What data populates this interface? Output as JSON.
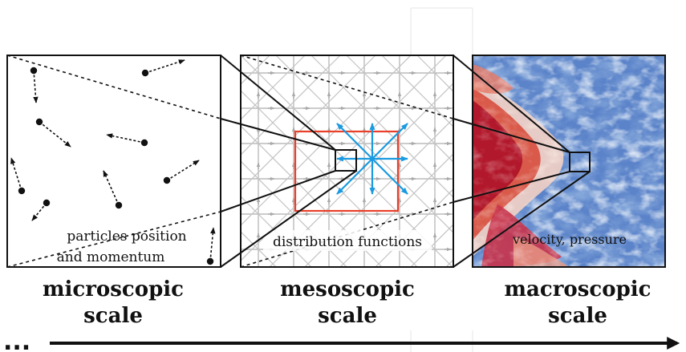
{
  "panels": {
    "microscopic": {
      "caption_line1": "particles position",
      "caption_line2": "and momentum",
      "title_line1": "microscopic",
      "title_line2": "scale"
    },
    "mesoscopic": {
      "caption": "distribution functions",
      "title_line1": "mesoscopic",
      "title_line2": "scale"
    },
    "macroscopic": {
      "caption": "velocity, pressure",
      "title_line1": "macroscopic",
      "title_line2": "scale"
    }
  },
  "axis": {
    "ellipsis": "..."
  },
  "colors": {
    "highlight_box": "#e8402a",
    "velocity_arrows": "#1a9ae0",
    "lattice": "#aaaaaa",
    "flow_high": "#b2182b",
    "flow_low": "#3a64b8",
    "ink": "#111111"
  }
}
